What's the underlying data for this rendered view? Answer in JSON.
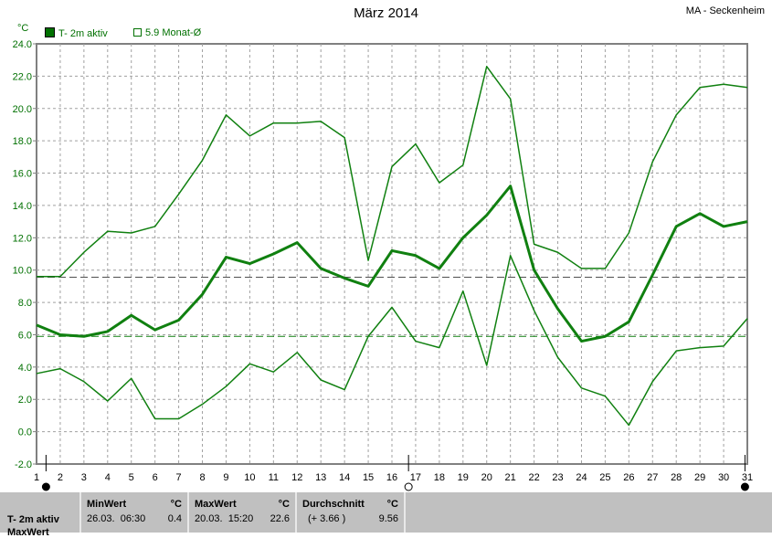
{
  "chart_data": {
    "type": "line",
    "title": "März 2014",
    "station": "MA - Seckenheim",
    "ylabel": "°C",
    "ylim": [
      -2,
      24
    ],
    "yticks": [
      "24.0",
      "22.0",
      "20.0",
      "18.0",
      "16.0",
      "14.0",
      "12.0",
      "10.0",
      "8.0",
      "6.0",
      "4.0",
      "2.0",
      "0.0",
      "-2.0"
    ],
    "x": [
      1,
      2,
      3,
      4,
      5,
      6,
      7,
      8,
      9,
      10,
      11,
      12,
      13,
      14,
      15,
      16,
      17,
      18,
      19,
      20,
      21,
      22,
      23,
      24,
      25,
      26,
      27,
      28,
      29,
      30,
      31
    ],
    "grid": true,
    "legend": [
      {
        "label": "T- 2m aktiv",
        "color": "#007000",
        "filled": true
      },
      {
        "label": "5.9 Monat-Ø",
        "color": "#007000",
        "filled": false
      }
    ],
    "series": [
      {
        "values": [
          9.6,
          9.6,
          11.1,
          12.4,
          12.3,
          12.7,
          14.7,
          16.8,
          19.6,
          18.3,
          19.1,
          19.1,
          19.2,
          18.2,
          10.6,
          16.4,
          17.8,
          15.4,
          16.5,
          22.6,
          20.6,
          11.6,
          11.1,
          10.1,
          10.1,
          12.3,
          16.7,
          19.6,
          21.3,
          21.5,
          21.3
        ],
        "color": "#108010",
        "width": 1.5
      },
      {
        "values": [
          6.6,
          6.0,
          5.9,
          6.2,
          7.2,
          6.3,
          6.9,
          8.5,
          10.8,
          10.4,
          11.0,
          11.7,
          10.1,
          9.5,
          9.0,
          11.2,
          10.9,
          10.1,
          12.0,
          13.4,
          15.2,
          10.0,
          7.6,
          5.6,
          5.9,
          6.8,
          9.7,
          12.7,
          13.5,
          12.7,
          13.0
        ],
        "color": "#108010",
        "width": 3
      },
      {
        "values": [
          3.6,
          3.9,
          3.1,
          1.9,
          3.3,
          0.8,
          0.8,
          1.7,
          2.8,
          4.2,
          3.7,
          4.9,
          3.2,
          2.6,
          5.9,
          7.7,
          5.6,
          5.2,
          8.7,
          4.1,
          10.9,
          7.5,
          4.6,
          2.7,
          2.2,
          0.4,
          3.1,
          5.0,
          5.2,
          5.3,
          7.0
        ],
        "color": "#108010",
        "width": 1.5
      }
    ],
    "reference_lines": [
      {
        "value": 9.56,
        "color": "#505050"
      },
      {
        "value": 5.9,
        "color": "#108010"
      }
    ],
    "moon_phases": [
      {
        "day": 1.4,
        "phase": "new"
      },
      {
        "day": 16.7,
        "phase": "full"
      },
      {
        "day": 30.9,
        "phase": "new"
      }
    ]
  },
  "stats": {
    "row_label": "T- 2m aktiv",
    "row_label2": "MaxWert",
    "min": {
      "header": "MinWert",
      "unit": "°C",
      "date": "26.03.  06:30",
      "value": "0.4"
    },
    "max": {
      "header": "MaxWert",
      "unit": "°C",
      "date": "20.03.  15:20",
      "value": "22.6"
    },
    "avg": {
      "header": "Durchschnitt",
      "unit": "°C",
      "diff": "(+ 3.66 )",
      "value": "9.56"
    }
  }
}
